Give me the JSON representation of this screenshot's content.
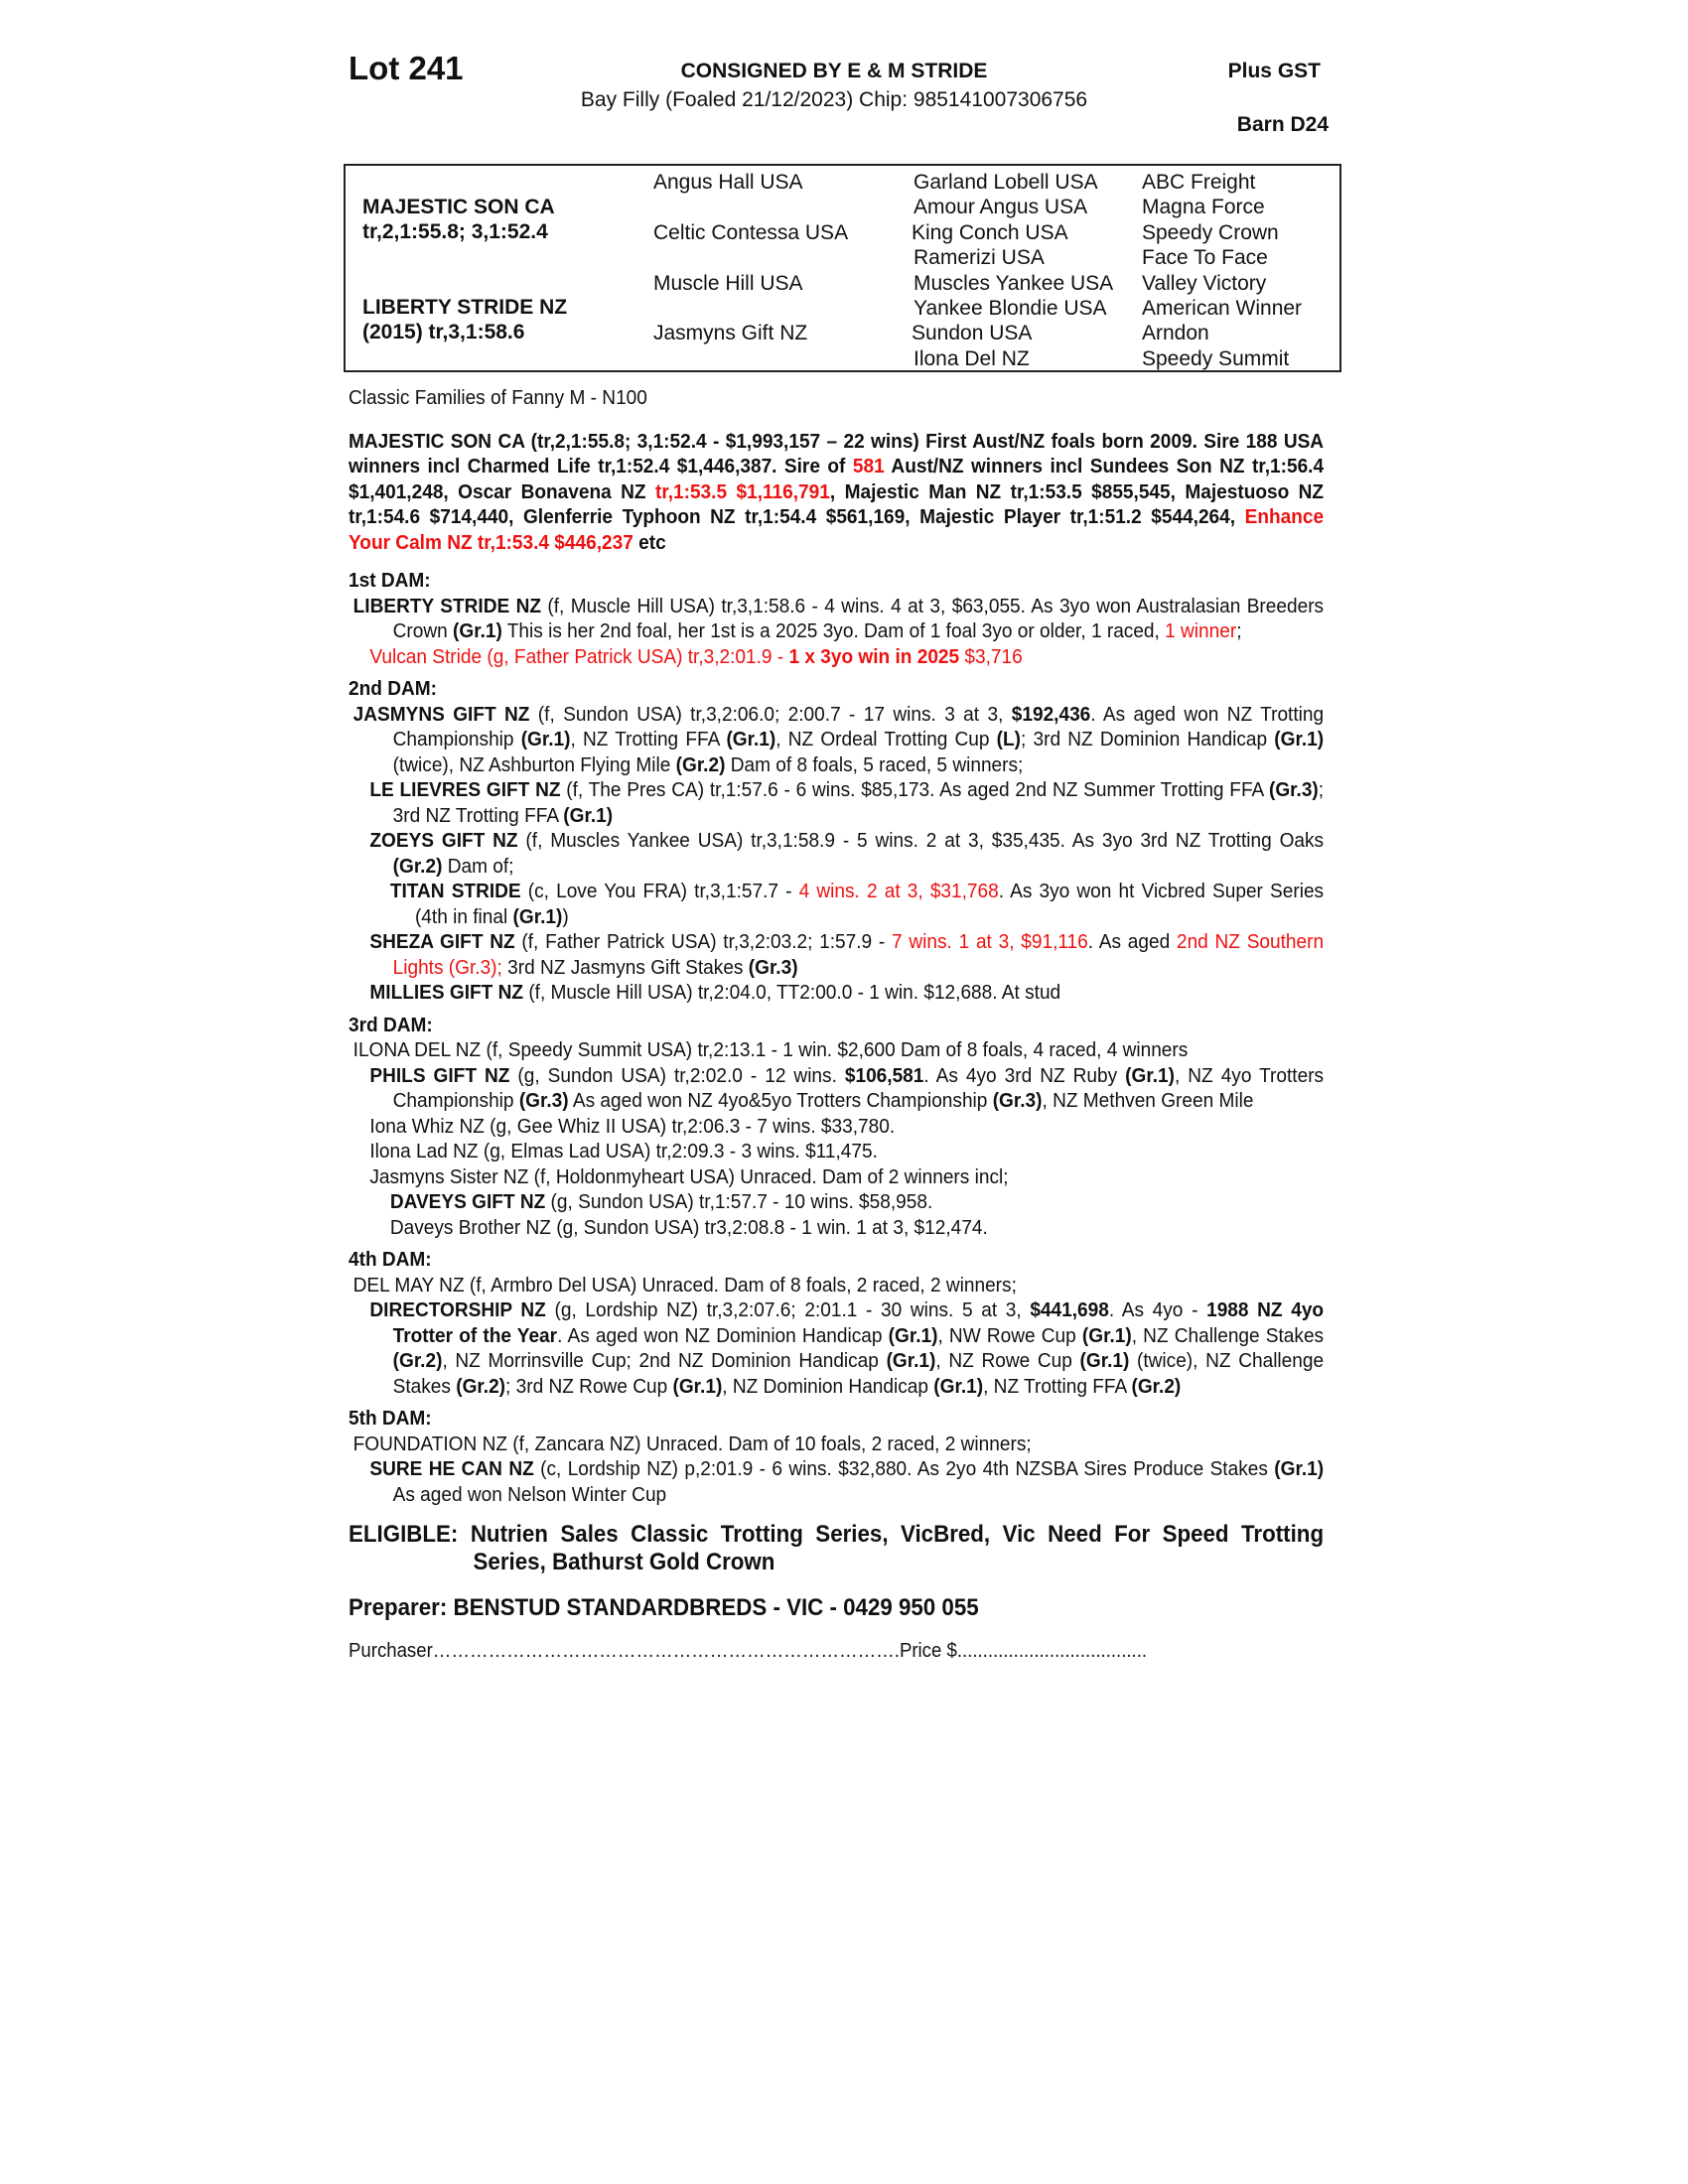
{
  "header": {
    "lot": "Lot 241",
    "consigned": "CONSIGNED BY E & M STRIDE",
    "description": "Bay Filly (Foaled 21/12/2023) Chip: 985141007306756",
    "gst": "Plus GST",
    "barn": "Barn D24"
  },
  "pedigree": {
    "sire": "MAJESTIC SON CA",
    "sire_record": "tr,2,1:55.8; 3,1:52.4",
    "dam": "LIBERTY STRIDE NZ",
    "dam_record": "(2015) tr,3,1:58.6",
    "gen2": [
      "Angus Hall USA",
      "Celtic Contessa USA",
      "Muscle Hill USA",
      "Jasmyns Gift NZ"
    ],
    "gen3": [
      "Garland Lobell USA",
      "Amour Angus USA",
      "King Conch USA",
      "Ramerizi USA",
      "Muscles Yankee USA",
      "Yankee Blondie USA",
      "Sundon USA",
      "Ilona Del NZ"
    ],
    "gen4": [
      "ABC Freight",
      "Magna Force",
      "Speedy Crown",
      "Face To Face",
      "Valley Victory",
      "American Winner",
      "Arndon",
      "Speedy Summit"
    ]
  },
  "paragraphs": [
    {
      "c": "",
      "s": [
        [
          "Classic Families of Fanny M - N100",
          ""
        ]
      ]
    },
    {
      "c": "sire",
      "s": [
        [
          "MAJESTIC SON CA (tr,2,1:55.8; 3,1:52.4 - $1,993,157 – 22 wins) First Aust/NZ foals born 2009. Sire 188 USA winners incl Charmed Life tr,1:52.4 $1,446,387. Sire of ",
          ""
        ],
        [
          "581",
          "r"
        ],
        [
          " Aust/NZ winners incl Sundees Son NZ tr,1:56.4 $1,401,248, Oscar Bonavena NZ ",
          ""
        ],
        [
          "tr,1:53.5 $1,116,791",
          "r"
        ],
        [
          ", Majestic Man NZ tr,1:53.5 $855,545, Majestuoso NZ tr,1:54.6 $714,440, Glenferrie Typhoon NZ tr,1:54.4 $561,169, Majestic Player tr,1:51.2 $544,264, ",
          ""
        ],
        [
          "Enhance Your Calm NZ tr,1:53.4 $446,237",
          "r"
        ],
        [
          " etc",
          ""
        ]
      ]
    },
    {
      "c": "h h1st",
      "s": [
        [
          "1st DAM:",
          ""
        ]
      ]
    },
    {
      "c": "lv0",
      "s": [
        [
          "LIBERTY STRIDE NZ",
          "b"
        ],
        [
          " (f, Muscle Hill USA) tr,3,1:58.6 - 4 wins. 4 at 3, $63,055. As 3yo won Australasian Breeders Crown ",
          ""
        ],
        [
          "(Gr.1)",
          "b"
        ],
        [
          " This is her 2nd foal, her 1st is a 2025 3yo. Dam of 1 foal 3yo or older, 1 raced, ",
          ""
        ],
        [
          "1 winner",
          "r"
        ],
        [
          ";",
          ""
        ]
      ]
    },
    {
      "c": "lv1 r",
      "s": [
        [
          "Vulcan Stride (g, Father Patrick USA) tr,3,2:01.9 - ",
          ""
        ],
        [
          "1 x 3yo win in 2025",
          "b"
        ],
        [
          " $3,716",
          ""
        ]
      ]
    },
    {
      "c": "h",
      "s": [
        [
          "2nd DAM:",
          ""
        ]
      ]
    },
    {
      "c": "lv0",
      "s": [
        [
          "JASMYNS GIFT NZ",
          "b"
        ],
        [
          " (f, Sundon USA) tr,3,2:06.0; 2:00.7 - 17 wins. 3 at 3, ",
          ""
        ],
        [
          "$192,436",
          "b"
        ],
        [
          ". As aged won NZ Trotting Championship ",
          ""
        ],
        [
          "(Gr.1)",
          "b"
        ],
        [
          ", NZ Trotting FFA ",
          ""
        ],
        [
          "(Gr.1)",
          "b"
        ],
        [
          ", NZ Ordeal Trotting Cup ",
          ""
        ],
        [
          "(L)",
          "b"
        ],
        [
          "; 3rd NZ Dominion Handicap ",
          ""
        ],
        [
          "(Gr.1)",
          "b"
        ],
        [
          "(twice), NZ Ashburton Flying Mile ",
          ""
        ],
        [
          "(Gr.2)",
          "b"
        ],
        [
          " Dam of 8 foals, 5 raced, 5 winners;",
          ""
        ]
      ]
    },
    {
      "c": "lv1",
      "s": [
        [
          "LE LIEVRES GIFT NZ",
          "b"
        ],
        [
          " (f, The Pres CA) tr,1:57.6 - 6 wins. $85,173. As aged 2nd NZ Summer Trotting FFA ",
          ""
        ],
        [
          "(Gr.3)",
          "b"
        ],
        [
          "; 3rd NZ Trotting FFA ",
          ""
        ],
        [
          "(Gr.1)",
          "b"
        ]
      ]
    },
    {
      "c": "lv1",
      "s": [
        [
          "ZOEYS GIFT NZ",
          "b"
        ],
        [
          " (f, Muscles Yankee USA) tr,3,1:58.9 - 5 wins. 2 at 3, $35,435. As 3yo 3rd NZ Trotting Oaks ",
          ""
        ],
        [
          "(Gr.2)",
          "b"
        ],
        [
          " Dam of;",
          ""
        ]
      ]
    },
    {
      "c": "lv2",
      "s": [
        [
          "TITAN STRIDE",
          "b"
        ],
        [
          " (c, Love You FRA) tr,3,1:57.7 - ",
          ""
        ],
        [
          "4 wins. 2 at 3, $31,768",
          "r"
        ],
        [
          ". As 3yo won ht Vicbred Super Series (4th in final ",
          ""
        ],
        [
          "(Gr.1)",
          "b"
        ],
        [
          ")",
          ""
        ]
      ]
    },
    {
      "c": "lv1",
      "s": [
        [
          "SHEZA GIFT NZ",
          "b"
        ],
        [
          " (f, Father Patrick USA) tr,3,2:03.2; 1:57.9 - ",
          ""
        ],
        [
          "7 wins. 1 at 3, $91,116",
          "r"
        ],
        [
          ". As aged ",
          ""
        ],
        [
          "2nd NZ Southern Lights (Gr.3);",
          "r"
        ],
        [
          " 3rd NZ Jasmyns Gift Stakes ",
          ""
        ],
        [
          "(Gr.3)",
          "b"
        ]
      ]
    },
    {
      "c": "lv1",
      "s": [
        [
          "MILLIES GIFT NZ",
          "b"
        ],
        [
          " (f, Muscle Hill USA) tr,2:04.0, TT2:00.0 - 1 win. $12,688. At stud",
          ""
        ]
      ]
    },
    {
      "c": "h",
      "s": [
        [
          "3rd DAM:",
          ""
        ]
      ]
    },
    {
      "c": "lv0s",
      "s": [
        [
          "ILONA DEL NZ (f, Speedy Summit USA) tr,2:13.1 - 1 win. $2,600 Dam of 8 foals, 4 raced, 4 winners",
          ""
        ]
      ]
    },
    {
      "c": "lv1",
      "s": [
        [
          "PHILS GIFT NZ",
          "b"
        ],
        [
          " (g, Sundon USA) tr,2:02.0 - 12 wins. ",
          ""
        ],
        [
          "$106,581",
          "b"
        ],
        [
          ". As 4yo 3rd NZ Ruby ",
          ""
        ],
        [
          "(Gr.1)",
          "b"
        ],
        [
          ", NZ 4yo Trotters Championship ",
          ""
        ],
        [
          "(Gr.3)",
          "b"
        ],
        [
          " As aged won NZ 4yo&5yo Trotters Championship ",
          ""
        ],
        [
          "(Gr.3)",
          "b"
        ],
        [
          ", NZ Methven Green Mile",
          ""
        ]
      ]
    },
    {
      "c": "lv1s",
      "s": [
        [
          "Iona Whiz NZ (g, Gee Whiz II USA) tr,2:06.3 - 7 wins. $33,780.",
          ""
        ]
      ]
    },
    {
      "c": "lv1s",
      "s": [
        [
          "Ilona Lad NZ (g, Elmas Lad USA) tr,2:09.3 - 3 wins. $11,475.",
          ""
        ]
      ]
    },
    {
      "c": "lv1s",
      "s": [
        [
          "Jasmyns Sister NZ (f, Holdonmyheart USA) Unraced. Dam of 2 winners incl;",
          ""
        ]
      ]
    },
    {
      "c": "lv2s",
      "s": [
        [
          "DAVEYS GIFT NZ",
          "b"
        ],
        [
          " (g, Sundon USA) tr,1:57.7 - 10 wins. $58,958.",
          ""
        ]
      ]
    },
    {
      "c": "lv2s",
      "s": [
        [
          "Daveys Brother NZ (g, Sundon USA) tr3,2:08.8 - 1 win. 1 at 3, $12,474.",
          ""
        ]
      ]
    },
    {
      "c": "h",
      "s": [
        [
          "4th DAM:",
          ""
        ]
      ]
    },
    {
      "c": "lv0s",
      "s": [
        [
          "DEL MAY NZ (f, Armbro Del USA) Unraced. Dam of 8 foals, 2 raced, 2 winners;",
          ""
        ]
      ]
    },
    {
      "c": "lv1",
      "s": [
        [
          "DIRECTORSHIP NZ",
          "b"
        ],
        [
          " (g, Lordship NZ) tr,3,2:07.6; 2:01.1 - 30 wins. 5 at 3, ",
          ""
        ],
        [
          "$441,698",
          "b"
        ],
        [
          ". As 4yo - ",
          ""
        ],
        [
          "1988 NZ 4yo Trotter of the Year",
          "b"
        ],
        [
          ". As aged won NZ Dominion Handicap ",
          ""
        ],
        [
          "(Gr.1)",
          "b"
        ],
        [
          ", NW Rowe Cup ",
          ""
        ],
        [
          "(Gr.1)",
          "b"
        ],
        [
          ", NZ Challenge Stakes ",
          ""
        ],
        [
          "(Gr.2)",
          "b"
        ],
        [
          ", NZ Morrinsville Cup; 2nd NZ Dominion Handicap ",
          ""
        ],
        [
          "(Gr.1)",
          "b"
        ],
        [
          ", NZ Rowe Cup ",
          ""
        ],
        [
          "(Gr.1)",
          "b"
        ],
        [
          " (twice), NZ Challenge Stakes ",
          ""
        ],
        [
          "(Gr.2)",
          "b"
        ],
        [
          "; 3rd NZ Rowe Cup ",
          ""
        ],
        [
          "(Gr.1)",
          "b"
        ],
        [
          ", NZ Dominion Handicap ",
          ""
        ],
        [
          "(Gr.1)",
          "b"
        ],
        [
          ", NZ Trotting FFA ",
          ""
        ],
        [
          "(Gr.2)",
          "b"
        ]
      ]
    },
    {
      "c": "h",
      "s": [
        [
          "5th DAM:",
          ""
        ]
      ]
    },
    {
      "c": "lv0s",
      "s": [
        [
          "FOUNDATION NZ (f, Zancara NZ) Unraced. Dam of 10 foals, 2 raced, 2 winners;",
          ""
        ]
      ]
    },
    {
      "c": "lv1",
      "s": [
        [
          "SURE HE CAN NZ",
          "b"
        ],
        [
          " (c, Lordship NZ) p,2:01.9 - 6 wins. $32,880. As 2yo 4th NZSBA Sires Produce Stakes ",
          ""
        ],
        [
          "(Gr.1)",
          "b"
        ],
        [
          " As aged won Nelson Winter Cup",
          ""
        ]
      ]
    },
    {
      "c": "elig",
      "s": [
        [
          "ELIGIBLE: Nutrien Sales Classic Trotting Series, VicBred, Vic Need For Speed Trotting Series, Bathurst Gold Crown",
          ""
        ]
      ]
    },
    {
      "c": "prep",
      "s": [
        [
          "Preparer: BENSTUD STANDARDBREDS - VIC - 0429 950 055",
          ""
        ]
      ]
    },
    {
      "c": "purch",
      "s": [
        [
          "Purchaser………………………………………………………………….Price $.....................................",
          ""
        ]
      ]
    }
  ],
  "colors": {
    "highlight": "#ee1111",
    "text": "#111111"
  }
}
